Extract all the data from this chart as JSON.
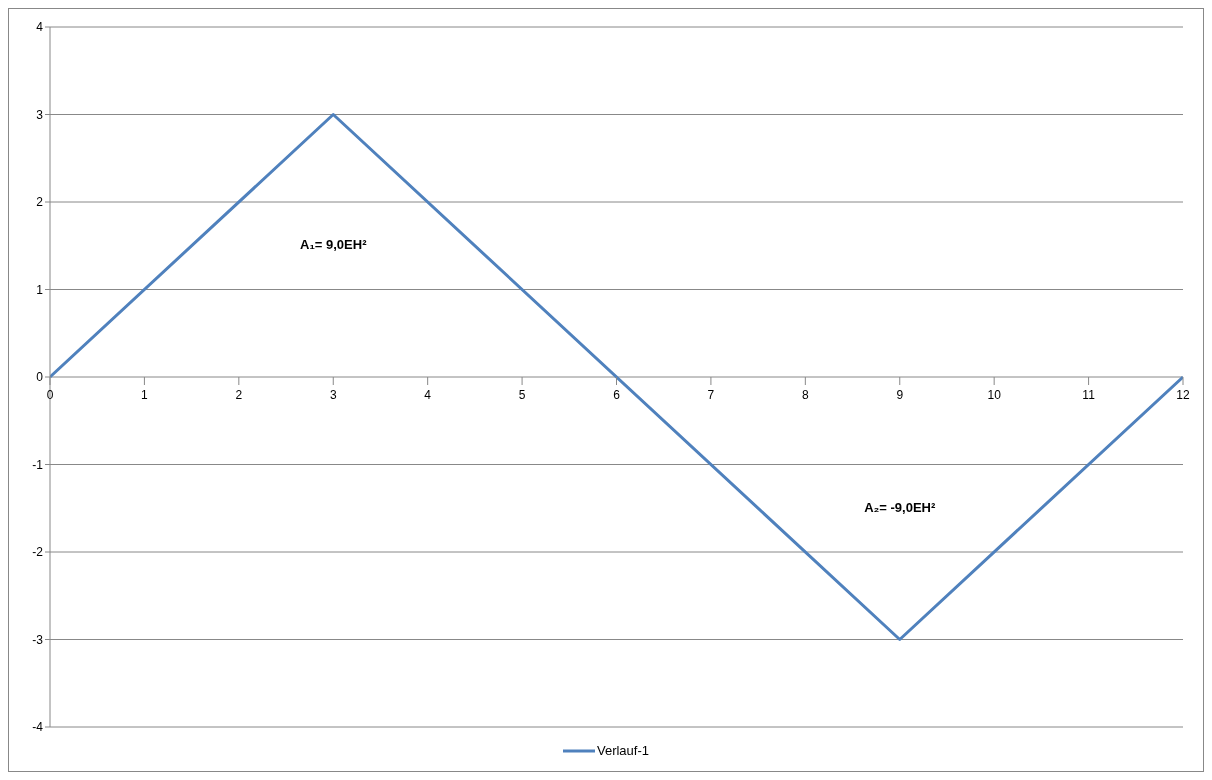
{
  "chart_data": {
    "type": "line",
    "x": [
      0,
      3,
      9,
      12
    ],
    "series": [
      {
        "name": "Verlauf-1",
        "color": "#4f81bd",
        "values": [
          0,
          3,
          -3,
          0
        ]
      }
    ],
    "xlim": [
      0,
      12
    ],
    "xticks": [
      0,
      1,
      2,
      3,
      4,
      5,
      6,
      7,
      8,
      9,
      10,
      11,
      12
    ],
    "ylim": [
      -4,
      4
    ],
    "yticks": [
      -4,
      -3,
      -2,
      -1,
      0,
      1,
      2,
      3,
      4
    ],
    "grid": "y",
    "legend": "bottom",
    "marker": "none",
    "line_style": "solid",
    "annotations": [
      "A₁= 9,0EH²",
      "A₂= -9,0EH²"
    ]
  }
}
